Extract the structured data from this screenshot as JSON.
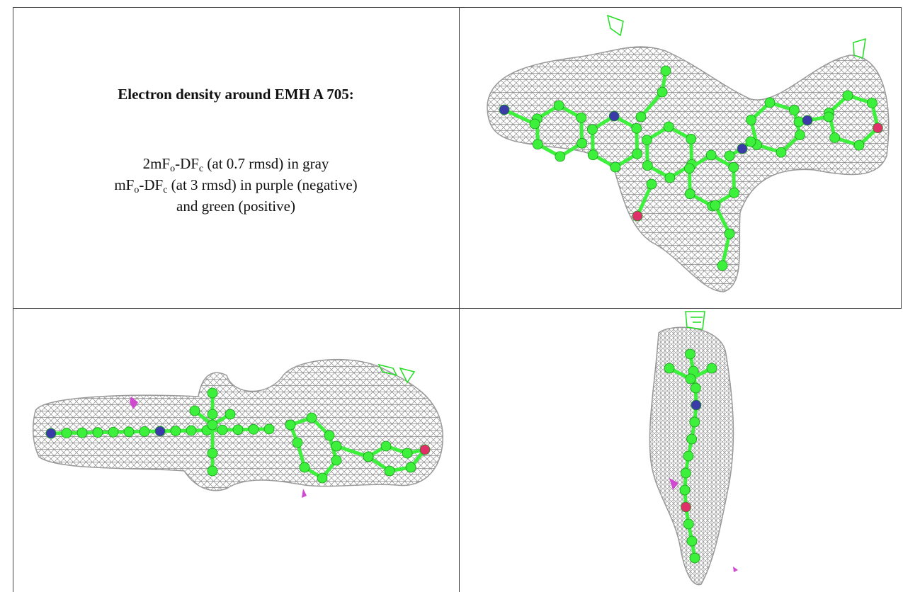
{
  "caption": {
    "title": "Electron density around EMH A 705:",
    "lines": [
      [
        "2mF",
        {
          "sub": "o"
        },
        "-DF",
        {
          "sub": "c"
        },
        " (at 0.7 rmsd) in gray"
      ],
      [
        "mF",
        {
          "sub": "o"
        },
        "-DF",
        {
          "sub": "c"
        },
        " (at 3 rmsd) in purple (negative)"
      ],
      [
        "and green (positive)"
      ]
    ]
  }
}
